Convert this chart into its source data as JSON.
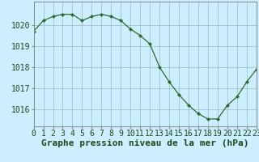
{
  "x": [
    0,
    1,
    2,
    3,
    4,
    5,
    6,
    7,
    8,
    9,
    10,
    11,
    12,
    13,
    14,
    15,
    16,
    17,
    18,
    19,
    20,
    21,
    22,
    23
  ],
  "y": [
    1019.7,
    1020.2,
    1020.4,
    1020.5,
    1020.5,
    1020.2,
    1020.4,
    1020.5,
    1020.4,
    1020.2,
    1019.8,
    1019.5,
    1019.1,
    1018.0,
    1017.3,
    1016.7,
    1016.2,
    1015.8,
    1015.55,
    1015.55,
    1016.2,
    1016.6,
    1017.3,
    1017.9
  ],
  "line_color": "#2d6a2d",
  "marker_color": "#2d6a2d",
  "bg_color": "#cceeff",
  "grid_color": "#99bbbb",
  "ylabel_ticks": [
    1016,
    1017,
    1018,
    1019,
    1020
  ],
  "ylim": [
    1015.2,
    1021.1
  ],
  "xlim": [
    0,
    23
  ],
  "xlabel": "Graphe pression niveau de la mer (hPa)",
  "xlabel_fontsize": 8,
  "tick_fontsize": 7
}
